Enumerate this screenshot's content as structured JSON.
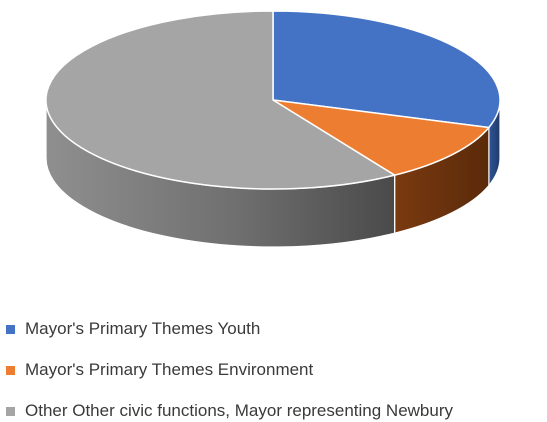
{
  "chart_data": {
    "type": "pie",
    "title": "",
    "style": "3d",
    "legend_position": "bottom",
    "slices": [
      {
        "label": "Mayor's Primary Themes Youth",
        "value": 30,
        "color": "#4472C4",
        "side_color": "#2f5597"
      },
      {
        "label": "Mayor's Primary Themes Environment",
        "value": 11,
        "color": "#ED7D31",
        "side_color": "#8f4311"
      },
      {
        "label": "Other Other civic functions, Mayor representing Newbury",
        "value": 59,
        "color": "#A5A5A5",
        "side_color": "#7a7a7a"
      }
    ]
  }
}
